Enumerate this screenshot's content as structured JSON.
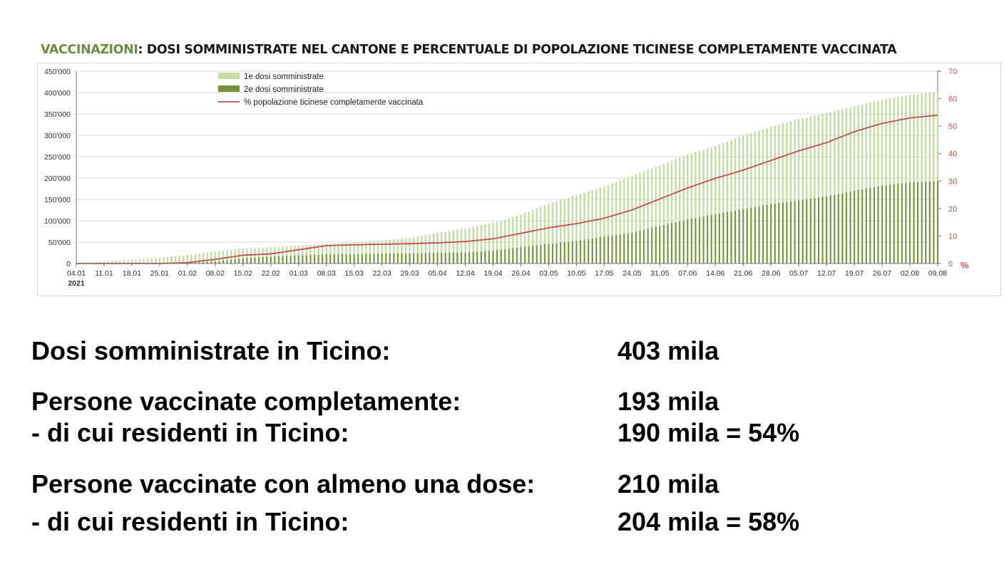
{
  "title": {
    "accent": "VACCINAZIONI",
    "rest": ": DOSI SOMMINISTRATE NEL CANTONE E PERCENTUALE DI POPOLAZIONE TICINESE COMPLETAMENTE VACCINATA",
    "accent_color": "#6c8f3b"
  },
  "chart_data": {
    "type": "bar",
    "stacked": "overlapping bars + line on secondary axis",
    "x_tick_labels": [
      "04.01",
      "11.01",
      "18.01",
      "25.01",
      "01.02",
      "08.02",
      "15.02",
      "22.02",
      "01.03",
      "08.03",
      "15.03",
      "22.03",
      "29.03",
      "05.04",
      "12.04",
      "19.04",
      "26.04",
      "03.05",
      "10.05",
      "17.05",
      "24.05",
      "31.05",
      "07.06",
      "14.06",
      "21.06",
      "28.06",
      "05.07",
      "12.07",
      "19.07",
      "26.07",
      "02.08",
      "09.08"
    ],
    "x_year_label": "2021",
    "y_left": {
      "ticks": [
        "0",
        "50'000",
        "100'000",
        "150'000",
        "200'000",
        "250'000",
        "300'000",
        "350'000",
        "400'000",
        "450'000"
      ],
      "range": [
        0,
        450000
      ]
    },
    "y_right": {
      "ticks": [
        "0",
        "10",
        "20",
        "30",
        "40",
        "50",
        "60",
        "70"
      ],
      "range": [
        0,
        70
      ],
      "unit": "%",
      "color": "#c0504d"
    },
    "series": [
      {
        "name": "1e dosi somministrate",
        "color": "#c4dca0",
        "axis": "left",
        "weekly_values": [
          0,
          5000,
          9000,
          14000,
          20000,
          28000,
          35000,
          38000,
          42000,
          46000,
          50000,
          54000,
          60000,
          72000,
          82000,
          95000,
          115000,
          140000,
          160000,
          180000,
          205000,
          230000,
          255000,
          275000,
          300000,
          320000,
          338000,
          352000,
          368000,
          383000,
          395000,
          401000
        ]
      },
      {
        "name": "2e dosi somministrate",
        "color": "#77933c",
        "axis": "left",
        "weekly_values": [
          0,
          0,
          0,
          0,
          1000,
          5000,
          12000,
          16000,
          19000,
          21000,
          22000,
          23000,
          24000,
          25000,
          26000,
          30000,
          38000,
          46000,
          53000,
          63000,
          72000,
          88000,
          103000,
          115000,
          127000,
          139000,
          148000,
          157000,
          170000,
          182000,
          190000,
          193000
        ]
      },
      {
        "name": "% popolazione ticinese completamente vaccinata",
        "color": "#c0504d",
        "axis": "right",
        "type": "line",
        "weekly_values": [
          0,
          0,
          0,
          0,
          0.3,
          1.5,
          3,
          3.5,
          5,
          6.5,
          6.8,
          7,
          7.2,
          7.5,
          8,
          9,
          11,
          13,
          14.5,
          16.5,
          19.5,
          23.5,
          27.5,
          31,
          34,
          37.5,
          41,
          44,
          48,
          51,
          53,
          54
        ]
      }
    ],
    "legend_position": "top-left",
    "grid": true
  },
  "stats": [
    {
      "label": "Dosi somministrate in Ticino:",
      "value": "403 mila"
    },
    {
      "label": "Persone vaccinate completamente:",
      "value": "193 mila"
    },
    {
      "label": "- di cui residenti in Ticino:",
      "value": "190 mila = 54%"
    },
    {
      "label": "Persone vaccinate con almeno una dose:",
      "value": "210 mila"
    },
    {
      "label": "- di cui residenti in Ticino:",
      "value": "204 mila = 58%"
    }
  ]
}
